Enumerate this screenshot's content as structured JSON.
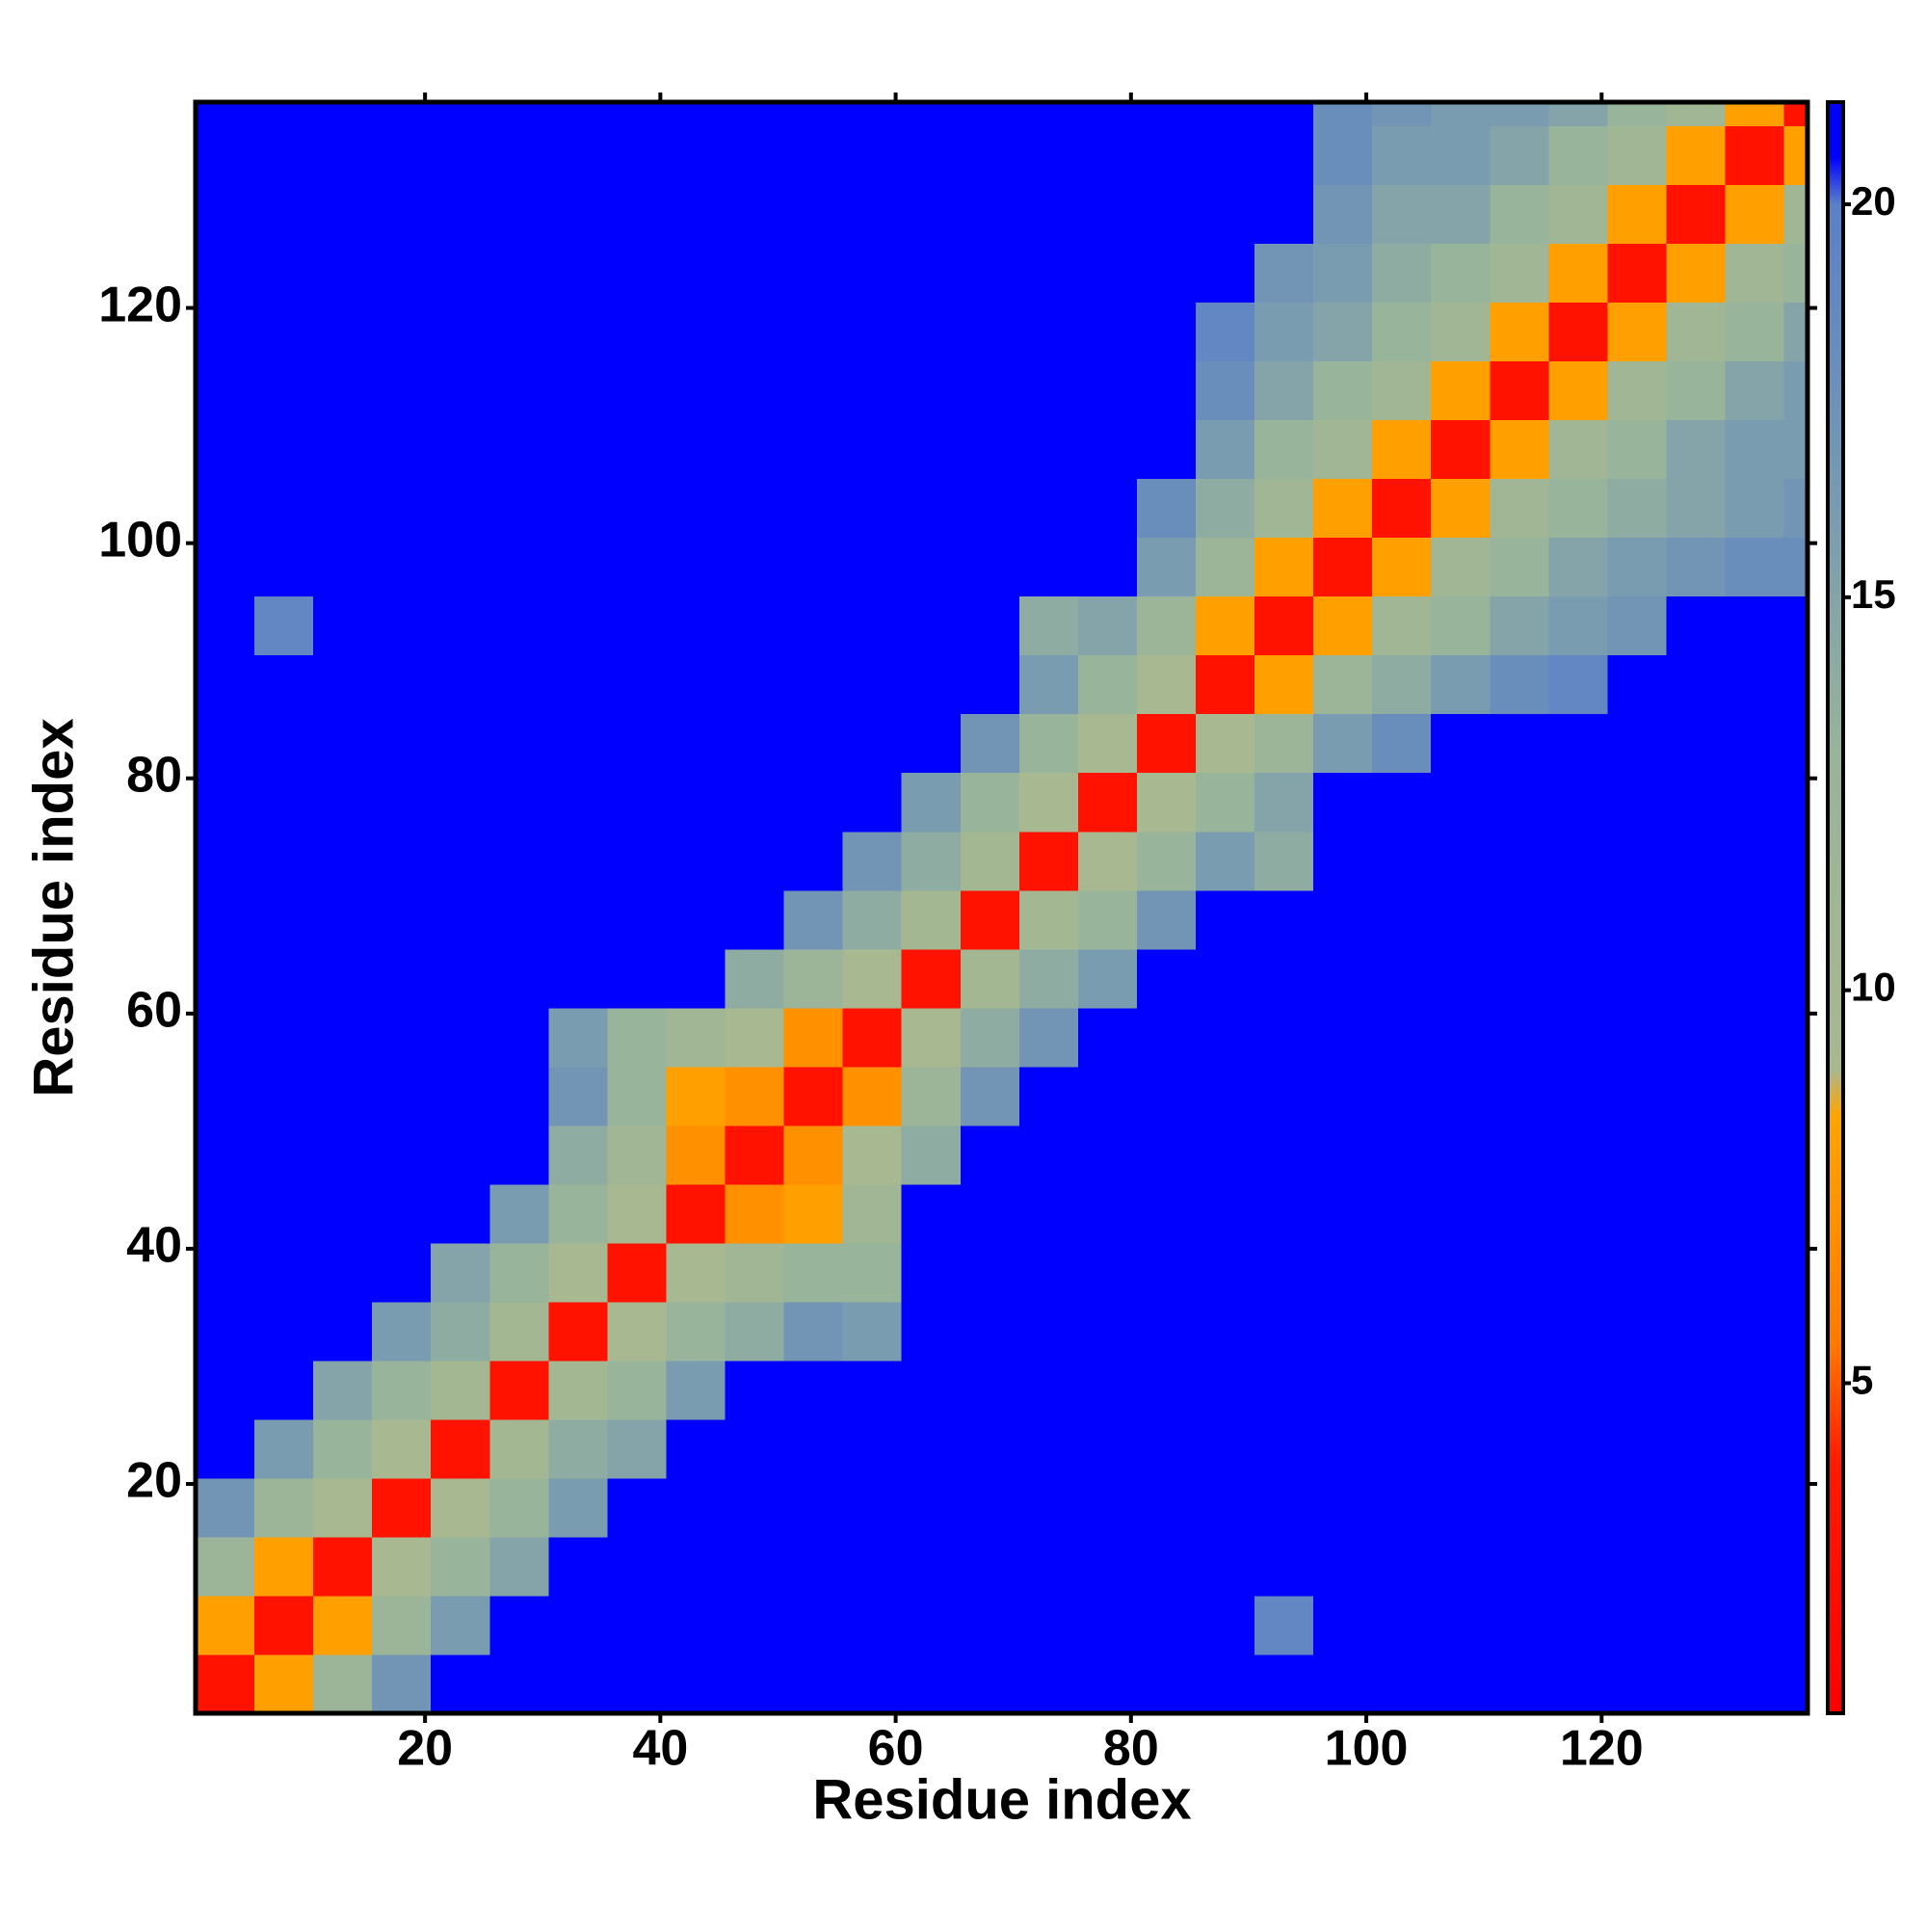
{
  "chart_data": {
    "type": "heatmap",
    "xlabel": "Residue index",
    "ylabel": "Residue index",
    "bins": [
      0.5,
      5.5,
      10.5,
      15.5,
      20.5,
      25.5,
      30.5,
      35.5,
      40.5,
      45.5,
      50.5,
      55.5,
      60.5,
      65.5,
      70.5,
      75.5,
      80.5,
      85.5,
      90.5,
      95.5,
      100.5,
      105.5,
      110.5,
      115.5,
      120.5,
      125.5,
      130.5,
      135.5,
      137.5
    ],
    "symmetric": true,
    "z": [
      [
        3
      ],
      [
        8,
        3
      ],
      [
        12,
        8,
        3
      ],
      [
        17,
        12,
        9,
        3
      ],
      [
        21,
        16,
        13,
        9,
        3
      ],
      [
        21,
        21,
        15,
        13,
        10,
        3
      ],
      [
        21,
        21,
        21,
        16,
        14,
        10,
        3
      ],
      [
        21,
        21,
        21,
        21,
        15,
        13,
        9,
        3
      ],
      [
        21,
        21,
        21,
        21,
        21,
        16,
        13,
        9,
        3
      ],
      [
        21,
        21,
        21,
        21,
        21,
        21,
        14,
        11,
        7,
        3
      ],
      [
        21,
        21,
        21,
        21,
        21,
        21,
        17,
        13,
        8,
        7,
        3
      ],
      [
        21,
        21,
        21,
        21,
        21,
        21,
        16,
        13,
        11,
        9,
        7,
        3
      ],
      [
        21,
        21,
        21,
        21,
        21,
        21,
        21,
        21,
        21,
        14,
        12,
        9,
        3
      ],
      [
        21,
        21,
        21,
        21,
        21,
        21,
        21,
        21,
        21,
        21,
        17,
        14,
        10,
        3
      ],
      [
        21,
        21,
        21,
        21,
        21,
        21,
        21,
        21,
        21,
        21,
        21,
        17,
        14,
        10,
        3
      ],
      [
        21,
        21,
        21,
        21,
        21,
        21,
        21,
        21,
        21,
        21,
        21,
        21,
        16,
        13,
        9,
        3
      ],
      [
        21,
        21,
        21,
        21,
        21,
        21,
        21,
        21,
        21,
        21,
        21,
        21,
        21,
        17,
        13,
        9,
        3
      ],
      [
        21,
        21,
        21,
        21,
        21,
        21,
        21,
        21,
        21,
        21,
        21,
        21,
        21,
        21,
        16,
        13,
        9,
        3
      ],
      [
        21,
        19,
        21,
        21,
        21,
        21,
        21,
        21,
        21,
        21,
        21,
        21,
        21,
        21,
        14,
        15,
        12,
        8,
        3
      ],
      [
        21,
        21,
        21,
        21,
        21,
        21,
        21,
        21,
        21,
        21,
        21,
        21,
        21,
        21,
        21,
        21,
        16,
        12,
        8,
        3
      ],
      [
        21,
        21,
        21,
        21,
        21,
        21,
        21,
        21,
        21,
        21,
        21,
        21,
        21,
        21,
        21,
        21,
        18,
        14,
        11,
        8,
        3
      ],
      [
        21,
        21,
        21,
        21,
        21,
        21,
        21,
        21,
        21,
        21,
        21,
        21,
        21,
        21,
        21,
        21,
        21,
        16,
        13,
        11,
        8,
        3
      ],
      [
        21,
        21,
        21,
        21,
        21,
        21,
        21,
        21,
        21,
        21,
        21,
        21,
        21,
        21,
        21,
        21,
        21,
        18,
        15,
        13,
        11,
        8,
        3
      ],
      [
        21,
        21,
        21,
        21,
        21,
        21,
        21,
        21,
        21,
        21,
        21,
        21,
        21,
        21,
        21,
        21,
        21,
        19,
        16,
        15,
        13,
        11,
        8,
        3
      ],
      [
        21,
        21,
        21,
        21,
        21,
        21,
        21,
        21,
        21,
        21,
        21,
        21,
        21,
        21,
        21,
        21,
        21,
        21,
        17,
        16,
        14,
        13,
        11,
        8,
        3
      ],
      [
        21,
        21,
        21,
        21,
        21,
        21,
        21,
        21,
        21,
        21,
        21,
        21,
        21,
        21,
        21,
        21,
        21,
        21,
        21,
        17,
        15,
        15,
        13,
        11,
        8,
        3
      ],
      [
        21,
        21,
        21,
        21,
        21,
        21,
        21,
        21,
        21,
        21,
        21,
        21,
        21,
        21,
        21,
        21,
        21,
        21,
        21,
        18,
        16,
        16,
        15,
        13,
        11,
        8,
        3
      ],
      [
        21,
        21,
        21,
        21,
        21,
        21,
        21,
        21,
        21,
        21,
        21,
        21,
        21,
        21,
        21,
        21,
        21,
        21,
        21,
        18,
        17,
        16,
        16,
        15,
        13,
        11,
        8,
        3
      ]
    ],
    "xlim": [
      0.5,
      137.5
    ],
    "ylim": [
      0.5,
      137.5
    ],
    "xticks": [
      20,
      40,
      60,
      80,
      100,
      120
    ],
    "yticks": [
      20,
      40,
      60,
      80,
      100,
      120
    ],
    "clim": [
      0.8,
      21.3
    ],
    "cticks": [
      5,
      10,
      15,
      20
    ],
    "colorscale": [
      [
        0.8,
        "#ff0000"
      ],
      [
        4,
        "#ff1a00"
      ],
      [
        5.5,
        "#ff7a00"
      ],
      [
        8.4,
        "#ffa500"
      ],
      [
        9,
        "#a8b890"
      ],
      [
        13,
        "#98b49a"
      ],
      [
        16,
        "#7a9cb0"
      ],
      [
        20,
        "#5a80c8"
      ],
      [
        20.6,
        "#0000ff"
      ],
      [
        21.3,
        "#0000ff"
      ]
    ]
  }
}
